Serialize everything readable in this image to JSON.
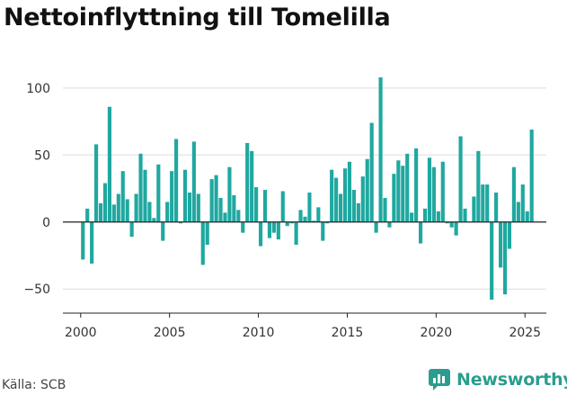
{
  "title": "Nettoinflyttning till Tomelilla",
  "source": "Källa: SCB",
  "brand": "Newsworthy",
  "colors": {
    "bar": "#1fa8a0",
    "brand": "#2a9d8f",
    "grid": "#dddddd"
  },
  "chart_data": {
    "type": "bar",
    "title": "Nettoinflyttning till Tomelilla",
    "xlabel": "",
    "ylabel": "",
    "grid": true,
    "xlim": [
      1999,
      2026.2
    ],
    "ylim": [
      -68,
      112
    ],
    "x_ticks": [
      2000,
      2005,
      2010,
      2015,
      2020,
      2025
    ],
    "y_ticks": [
      -50,
      0,
      50,
      100
    ],
    "y_tick_labels": [
      "−50",
      "0",
      "50",
      "100"
    ],
    "bar_width": 0.21,
    "x": [
      2000.125,
      2000.375,
      2000.625,
      2000.875,
      2001.125,
      2001.375,
      2001.625,
      2001.875,
      2002.125,
      2002.375,
      2002.625,
      2002.875,
      2003.125,
      2003.375,
      2003.625,
      2003.875,
      2004.125,
      2004.375,
      2004.625,
      2004.875,
      2005.125,
      2005.375,
      2005.625,
      2005.875,
      2006.125,
      2006.375,
      2006.625,
      2006.875,
      2007.125,
      2007.375,
      2007.625,
      2007.875,
      2008.125,
      2008.375,
      2008.625,
      2008.875,
      2009.125,
      2009.375,
      2009.625,
      2009.875,
      2010.125,
      2010.375,
      2010.625,
      2010.875,
      2011.125,
      2011.375,
      2011.625,
      2011.875,
      2012.125,
      2012.375,
      2012.625,
      2012.875,
      2013.125,
      2013.375,
      2013.625,
      2013.875,
      2014.125,
      2014.375,
      2014.625,
      2014.875,
      2015.125,
      2015.375,
      2015.625,
      2015.875,
      2016.125,
      2016.375,
      2016.625,
      2016.875,
      2017.125,
      2017.375,
      2017.625,
      2017.875,
      2018.125,
      2018.375,
      2018.625,
      2018.875,
      2019.125,
      2019.375,
      2019.625,
      2019.875,
      2020.125,
      2020.375,
      2020.625,
      2020.875,
      2021.125,
      2021.375,
      2021.625,
      2021.875,
      2022.125,
      2022.375,
      2022.625,
      2022.875,
      2023.125,
      2023.375,
      2023.625,
      2023.875,
      2024.125,
      2024.375,
      2024.625,
      2024.875,
      2025.125,
      2025.375
    ],
    "values": [
      -28,
      10,
      -31,
      58,
      14,
      29,
      86,
      13,
      21,
      38,
      17,
      -11,
      21,
      51,
      39,
      15,
      3,
      43,
      -14,
      15,
      38,
      62,
      -1,
      39,
      22,
      60,
      21,
      -32,
      -17,
      32,
      35,
      18,
      7,
      41,
      20,
      9,
      -8,
      59,
      53,
      26,
      -18,
      24,
      -12,
      -8,
      -13,
      23,
      -3,
      -1,
      -17,
      9,
      4,
      22,
      1,
      11,
      -14,
      -1,
      39,
      33,
      21,
      40,
      45,
      24,
      14,
      34,
      47,
      74,
      -8,
      108,
      18,
      -4,
      36,
      46,
      42,
      51,
      7,
      55,
      -16,
      10,
      48,
      41,
      8,
      45,
      -1,
      -4,
      -10,
      64,
      10,
      0,
      19,
      53,
      28,
      28,
      -58,
      22,
      -34,
      -54,
      -20,
      41,
      15,
      28,
      8,
      69
    ]
  }
}
